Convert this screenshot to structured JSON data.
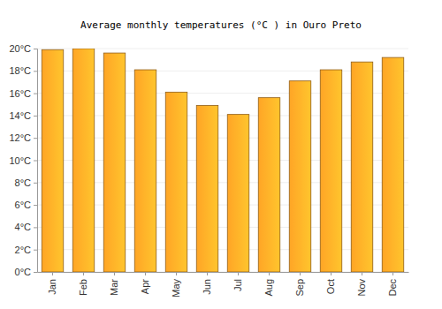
{
  "chart_data": {
    "type": "bar",
    "title": "Average monthly temperatures (°C ) in Ouro Preto",
    "categories": [
      "Jan",
      "Feb",
      "Mar",
      "Apr",
      "May",
      "Jun",
      "Jul",
      "Aug",
      "Sep",
      "Oct",
      "Nov",
      "Dec"
    ],
    "values": [
      19.9,
      20.0,
      19.6,
      18.1,
      16.1,
      14.9,
      14.1,
      15.6,
      17.1,
      18.1,
      18.8,
      19.2
    ],
    "color": "#ffa526",
    "ylim": [
      0,
      20
    ],
    "yticks": [
      {
        "value": 0,
        "label": "0°C"
      },
      {
        "value": 2,
        "label": "2°C"
      },
      {
        "value": 4,
        "label": "4°C"
      },
      {
        "value": 6,
        "label": "6°C"
      },
      {
        "value": 8,
        "label": "8°C"
      },
      {
        "value": 10,
        "label": "10°C"
      },
      {
        "value": 12,
        "label": "12°C"
      },
      {
        "value": 14,
        "label": "14°C"
      },
      {
        "value": 16,
        "label": "16°C"
      },
      {
        "value": 18,
        "label": "18°C"
      },
      {
        "value": 20,
        "label": "20°C"
      }
    ],
    "grid": true
  }
}
